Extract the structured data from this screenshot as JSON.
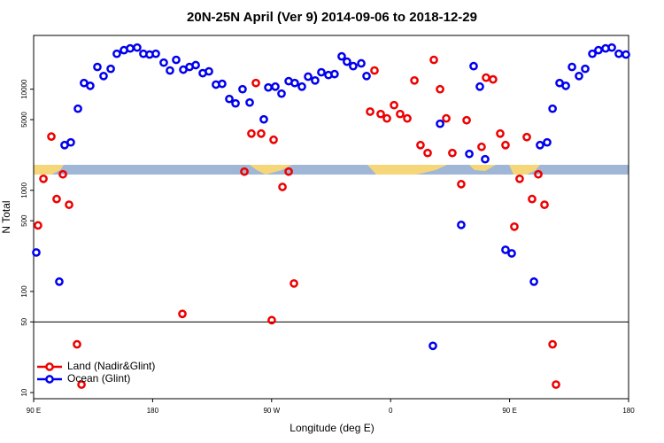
{
  "chart_data": {
    "type": "scatter",
    "title": "20N-25N April (Ver 9)   2014-09-06 to 2018-12-29",
    "x_label": "Longitude (deg E)",
    "y_label": "N Total",
    "ylog": true,
    "grid": false,
    "legend": "bottomleft",
    "hline": 50,
    "xlim": [
      90,
      540
    ],
    "ylim": [
      8.7,
      34000
    ],
    "xticks": [
      {
        "value": 90,
        "label": "90 E"
      },
      180,
      {
        "value": 270,
        "label": "90 W"
      },
      {
        "value": 360,
        "label": "0"
      },
      {
        "value": 450,
        "label": "90 E"
      },
      {
        "value": 540,
        "label": "180"
      }
    ],
    "yticks": [
      10,
      50,
      100,
      500,
      1000,
      5000,
      10000
    ],
    "series": [
      {
        "name": "Land (Nadir&Glint)",
        "color": "#ee0000",
        "x": [
          93.3,
          97.4,
          103.4,
          107.4,
          112.1,
          116.8,
          122.8,
          126.2,
          202.5,
          249.4,
          254.7,
          258.1,
          262.1,
          270.1,
          271.5,
          278.2,
          282.9,
          286.9,
          344.5,
          347.8,
          352.5,
          357.2,
          362.6,
          367.2,
          372.6,
          378.0,
          382.6,
          388.0,
          392.7,
          397.4,
          402.1,
          406.7,
          413.4,
          417.5,
          428.8,
          432.2,
          437.5,
          442.9,
          446.9,
          453.6,
          457.6,
          463.0,
          467.0,
          471.7,
          476.4,
          482.5,
          485.1
        ],
        "values": [
          450,
          1300,
          3400,
          820,
          1440,
          720,
          30,
          12,
          60,
          1530,
          3640,
          11500,
          3640,
          52,
          3160,
          1080,
          1530,
          120,
          6000,
          15300,
          5680,
          5140,
          6950,
          5680,
          5140,
          12200,
          2800,
          2340,
          19500,
          10000,
          5140,
          2340,
          1150,
          4930,
          2690,
          13000,
          12500,
          3640,
          2800,
          437,
          1300,
          3360,
          820,
          1440,
          720,
          30,
          12
        ]
      },
      {
        "name": "Ocean (Glint)",
        "color": "#0000ee",
        "x": [
          92.0,
          109.4,
          113.4,
          118.1,
          123.5,
          128.1,
          132.8,
          138.2,
          142.9,
          148.3,
          152.9,
          158.3,
          163.0,
          168.3,
          173.0,
          177.7,
          182.4,
          188.4,
          193.1,
          197.8,
          203.2,
          207.9,
          212.6,
          217.9,
          222.6,
          227.9,
          232.6,
          238.0,
          242.7,
          248.0,
          253.4,
          264.1,
          267.5,
          272.8,
          277.5,
          282.9,
          287.5,
          292.9,
          297.6,
          302.9,
          307.6,
          313.0,
          317.6,
          323.0,
          327.0,
          331.7,
          337.8,
          341.8,
          392.0,
          397.4,
          413.4,
          419.5,
          422.8,
          427.5,
          431.5,
          446.9,
          451.6,
          468.4,
          473.0,
          478.4,
          482.5,
          487.8,
          492.5,
          497.2,
          502.5,
          507.2,
          512.6,
          517.2,
          522.6,
          527.3,
          532.6,
          538.0
        ],
        "values": [
          243,
          125,
          2800,
          2980,
          6410,
          11500,
          10800,
          16600,
          13500,
          15900,
          22400,
          24300,
          25300,
          25800,
          22400,
          22000,
          22400,
          18300,
          15300,
          19500,
          15600,
          16600,
          17300,
          14400,
          15000,
          11100,
          11300,
          8010,
          7240,
          10000,
          7380,
          5030,
          10400,
          10600,
          9040,
          12000,
          11500,
          10600,
          13300,
          12200,
          14700,
          13800,
          14100,
          21100,
          18700,
          16900,
          18000,
          13500,
          29,
          4550,
          455,
          2290,
          16900,
          10600,
          2030,
          258,
          238,
          125,
          2800,
          2980,
          6410,
          11500,
          10800,
          16600,
          13500,
          15900,
          22400,
          24300,
          25300,
          25800,
          22400,
          22000
        ]
      }
    ]
  }
}
